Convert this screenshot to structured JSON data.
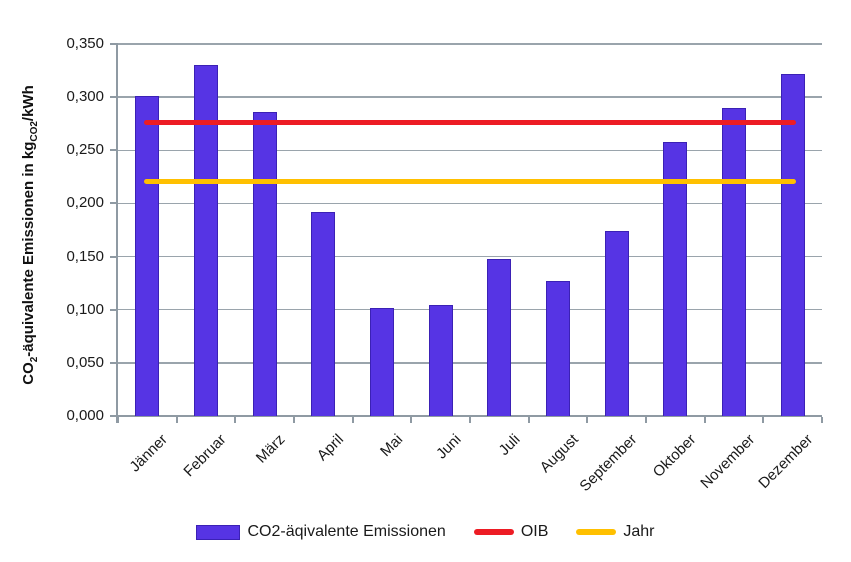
{
  "chart_data": {
    "type": "bar",
    "title": "",
    "categories": [
      "Jänner",
      "Februar",
      "März",
      "April",
      "Mai",
      "Juni",
      "Juli",
      "August",
      "September",
      "Oktober",
      "November",
      "Dezember"
    ],
    "series": [
      {
        "name": "CO2-äqivalente Emissionen",
        "kind": "bar",
        "color": "#5634e4",
        "border_color": "#3b21b5",
        "values": [
          0.301,
          0.33,
          0.286,
          0.192,
          0.102,
          0.104,
          0.148,
          0.127,
          0.174,
          0.258,
          0.29,
          0.322
        ]
      },
      {
        "name": "OIB",
        "kind": "hline",
        "color": "#ed1c24",
        "value": 0.276
      },
      {
        "name": "Jahr",
        "kind": "hline",
        "color": "#ffc000",
        "value": 0.221
      }
    ],
    "ylabel": {
      "p1": "CO",
      "s1": "2",
      "p2": "-äquivalente Emissionen in kg",
      "s2": "CO2",
      "p3": "/kWh"
    },
    "yticks": [
      "0,000",
      "0,050",
      "0,100",
      "0,150",
      "0,200",
      "0,250",
      "0,300",
      "0,350"
    ],
    "ylim": [
      0,
      0.35
    ],
    "grid": true,
    "gridline_color": "#9aa4ac",
    "axis_color": "#8f9aa3",
    "text_color": "#1a1a1a",
    "legend_position": "bottom"
  }
}
